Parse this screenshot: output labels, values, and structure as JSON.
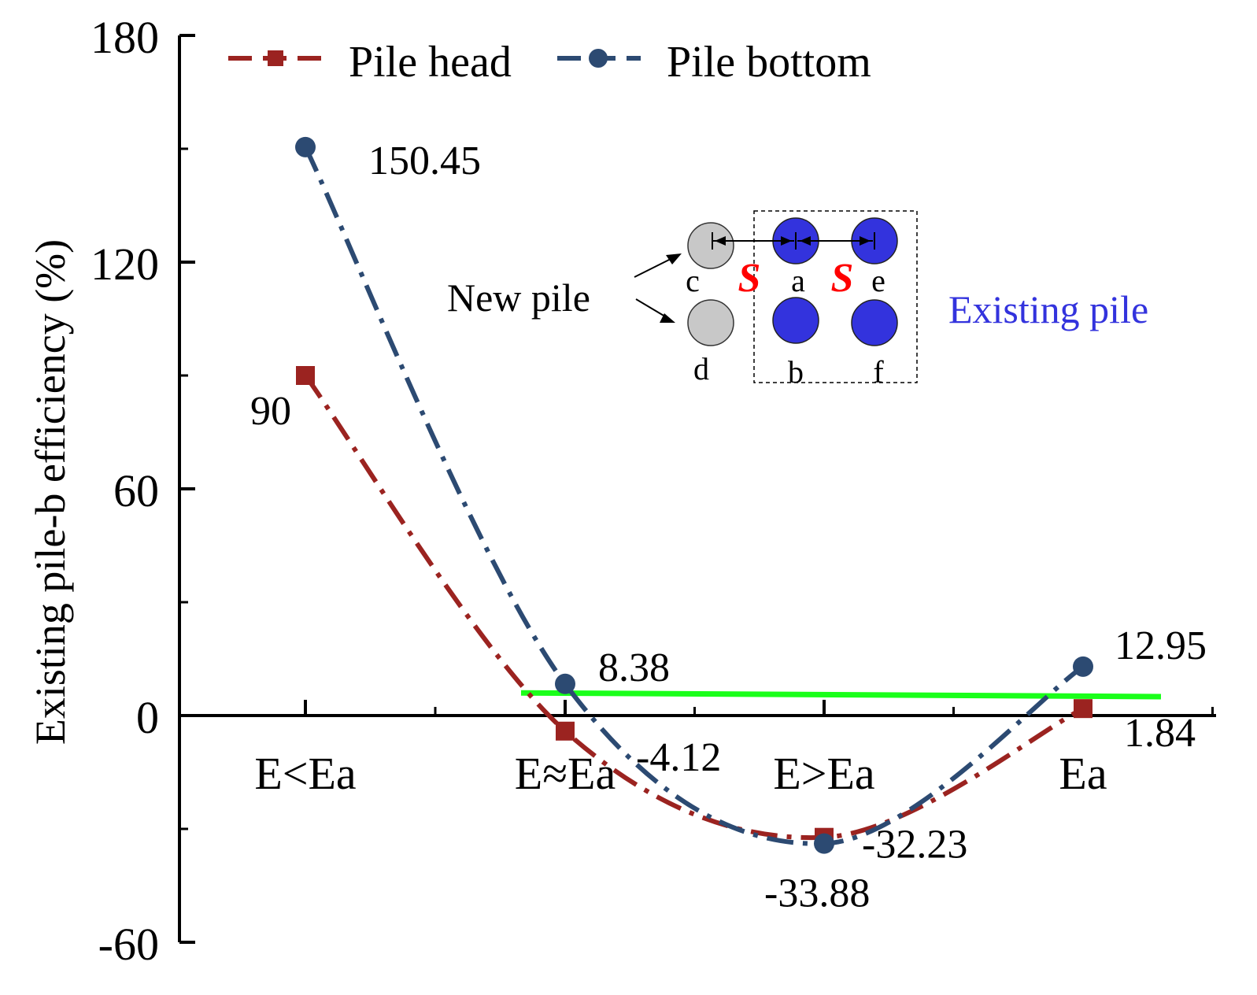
{
  "chart_data": {
    "type": "line",
    "title": "",
    "xlabel": "",
    "ylabel": "Existing pile-b efficiency (%)",
    "ylim": [
      -60,
      180
    ],
    "yticks": [
      -60,
      0,
      60,
      120,
      180
    ],
    "categories": [
      "E<Ea",
      "E≈Ea",
      "E>Ea",
      "Ea"
    ],
    "series": [
      {
        "name": "Pile head",
        "color": "#9b2320",
        "marker": "square",
        "values": [
          90,
          -4.12,
          -32.23,
          1.84
        ],
        "labels": [
          "90",
          "-4.12",
          "-32.23",
          "1.84"
        ]
      },
      {
        "name": "Pile bottom",
        "color": "#2c4a72",
        "marker": "circle",
        "values": [
          150.45,
          8.38,
          -33.88,
          12.95
        ],
        "labels": [
          "150.45",
          "8.38",
          "-33.88",
          "12.95"
        ]
      }
    ],
    "reference_line": {
      "color": "#1aff1a",
      "y_start": 6,
      "y_end": 5
    },
    "legend_position": "top",
    "inset": {
      "new_pile_label": "New pile",
      "existing_pile_label": "Existing pile",
      "existing_color": "#3333dd",
      "new_color": "#c8c8c8",
      "spacing_symbol": "S",
      "spacing_color": "#ff0000",
      "pile_letters": [
        "c",
        "a",
        "e",
        "d",
        "b",
        "f"
      ]
    }
  }
}
